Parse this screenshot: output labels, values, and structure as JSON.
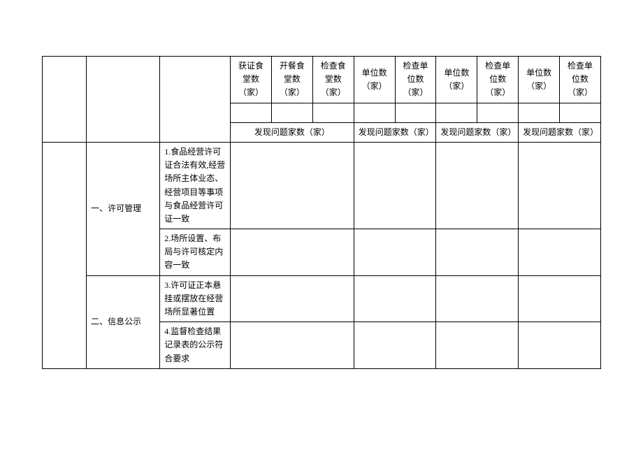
{
  "headers": {
    "h1": "获证食堂数（家）",
    "h2": "开餐食堂数（家）",
    "h3": "检查食堂数（家）",
    "h4": "单位数（家）",
    "h5": "检查单位数（家）",
    "h6": "单位数（家）",
    "h7": "检查单位数（家）",
    "h8": "单位数（家）",
    "h9": "检查单位数（家）",
    "problems": "发现问题家数（家）"
  },
  "sections": {
    "s1": {
      "title": "一、许可管理",
      "items": {
        "i1": "1.食品经营许可证合法有效,经营场所主体业态、经营项目等事项与食品经营许可证一致",
        "i2": "2.场所设置、布局与许可核定内容一致"
      }
    },
    "s2": {
      "title": "二、信息公示",
      "items": {
        "i3": "3.许可证正本悬挂或摆放在经营场所显著位置",
        "i4": "4.监督检查结果记录表的公示符合要求"
      }
    }
  },
  "colors": {
    "border": "#000000",
    "background": "#ffffff",
    "text": "#000000"
  },
  "typography": {
    "font_family": "SimSun",
    "font_size": 12,
    "line_height": 1.6
  }
}
